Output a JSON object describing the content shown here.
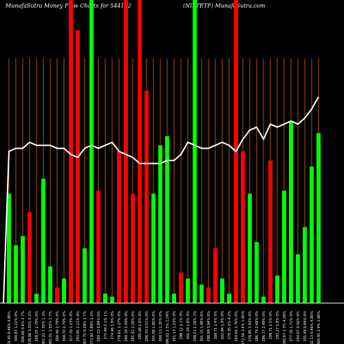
{
  "header": {
    "left": "MunafaSutra  Money Flow  Charts for 544102",
    "right": "(NIFTETF) MunafaSutra.com"
  },
  "chart_data": {
    "type": "bar",
    "title": "MunafaSutra  Money Flow  Charts for 544102",
    "subtitle": "(NIFTETF) MunafaSutra.com",
    "ylim": [
      0,
      100
    ],
    "colors": {
      "up": "#00ff00",
      "down": "#ff0000",
      "line": "#ffffff",
      "grid": "#b35900",
      "background": "#000000"
    },
    "categories": [
      "301.91 0.46% 4.85%",
      "300.83 1.22% 0%",
      "300.06 0.6% 2.7%",
      "278.06 3.32% 0.2%",
      "268.25 2.79% 0%",
      "307.22 7.55% 1.3%",
      "301.01 2.55% 1.7%",
      "304.48 2.79% 0%",
      "304.70 2.79% 0%",
      "317.70 1.23% 0%",
      "293.95 2.21% 0%",
      "307.75 0.28% 2.7%",
      "273.92 3.89% 1.2%",
      "289.33 0.84% 0%",
      "271.49 2.1% 1%",
      "274.46 1.9% 0%",
      "278.61 1.27% 0%",
      "280.18 2.39% 0%",
      "281.42 2.28% 0%",
      "285.68 2.6% 0%",
      "298.70 3.51% 0%",
      "301.09 1.86% 0%",
      "300.13 1.35% 0%",
      "296.02 2.5% 1.24%",
      "301.13 1.23% 0%",
      "298.12 2.1% 0%",
      "301.29 2.8% 0%",
      "298.21 2.28% 2%",
      "301.15 1.98% 0%",
      "298.99 3.94% 0%",
      "300.71 2.4% 0%",
      "302.84 1.9% 0%",
      "270.35 2% 4.2%",
      "264.66 2.76% 0%",
      "272.50 2.4% 1.05%",
      "278.85 2.93% 0%",
      "286.79 2.68% 0%",
      "296.17 2.49% 0%",
      "299.71 2.5% 0%",
      "297.27 1.9% 0%",
      "280.67 2.3% 4.28%",
      "277.16 1.71% 0%",
      "294.07 0.56% 0%",
      "301.49 0.84% 0%",
      "302.13 0.46% 4.85%",
      "300.91 2.9% 2.86%"
    ],
    "series": [
      {
        "values": [
          36,
          19,
          22,
          30,
          3,
          41,
          12,
          5,
          8,
          100,
          90,
          18,
          100,
          37,
          3,
          2,
          50,
          100,
          36,
          100,
          70,
          36,
          52,
          55,
          3,
          10,
          8,
          100,
          6,
          5,
          18,
          8,
          3,
          100,
          50,
          36,
          20,
          2,
          47,
          9,
          37,
          60,
          16,
          25,
          45,
          56
        ],
        "directions": [
          "up",
          "up",
          "up",
          "down",
          "up",
          "up",
          "up",
          "down",
          "up",
          "down",
          "down",
          "up",
          "up",
          "down",
          "up",
          "up",
          "down",
          "down",
          "down",
          "down",
          "down",
          "up",
          "up",
          "up",
          "up",
          "down",
          "up",
          "up",
          "up",
          "down",
          "down",
          "up",
          "up",
          "down",
          "down",
          "up",
          "up",
          "up",
          "down",
          "up",
          "up",
          "up",
          "up",
          "up",
          "up",
          "up"
        ]
      },
      {
        "type": "line",
        "values": [
          50,
          51,
          51,
          53,
          52,
          52,
          52,
          51,
          51,
          49,
          48,
          51,
          52,
          51,
          52,
          53,
          50,
          49,
          48,
          46,
          46,
          46,
          46,
          47,
          47,
          49,
          53,
          52,
          51,
          51,
          52,
          53,
          52,
          50,
          54,
          57,
          58,
          54,
          59,
          58,
          59,
          60,
          59,
          61,
          64,
          68
        ]
      }
    ],
    "grid": true,
    "gridlines": "vertical"
  }
}
